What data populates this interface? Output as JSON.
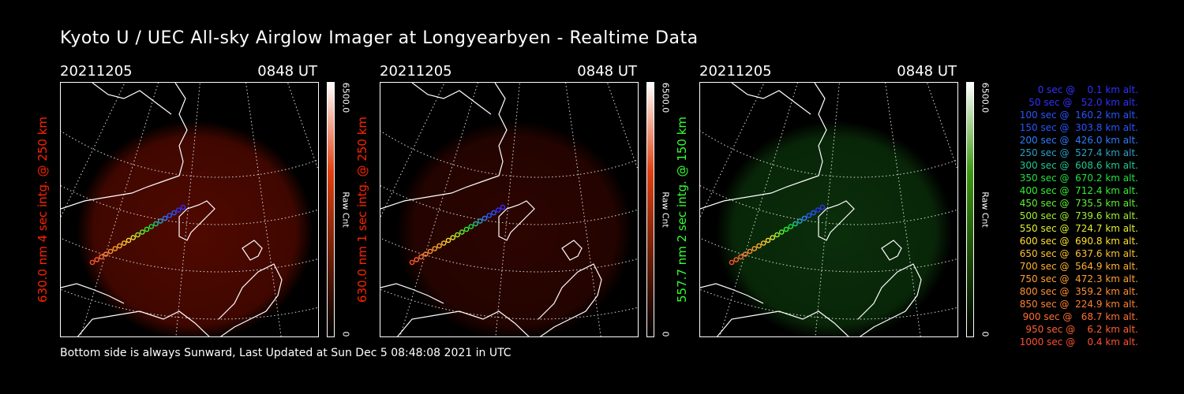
{
  "title": "Kyoto U / UEC All-sky Airglow Imager at Longyearbyen - Realtime Data",
  "footer": "Bottom side is always Sunward, Last Updated at Sun Dec  5 08:48:08 2021 in UTC",
  "colors": {
    "red_channel": "#ff2a00",
    "green_channel": "#33ff33",
    "frame": "#ffffff"
  },
  "chart_data": [
    {
      "type": "heatmap",
      "date": "20211205",
      "time": "0848 UT",
      "ylabel": "630.0 nm 4 sec intg. @ 250 km",
      "label_color": "#ff2200",
      "colorbar": {
        "max_label": "6500.0",
        "min_label": "0",
        "unit": "Raw Cnt",
        "top_color": "#ffffff",
        "mid_color": "#e04010",
        "bottom_color": "#000000"
      },
      "glow_color": "#6a0c00",
      "glow_opacity": 0.75,
      "track_panel": true
    },
    {
      "type": "heatmap",
      "date": "20211205",
      "time": "0848 UT",
      "ylabel": "630.0 nm 1 sec intg. @ 250 km",
      "label_color": "#ff2200",
      "colorbar": {
        "max_label": "6500.0",
        "min_label": "0",
        "unit": "Raw Cnt",
        "top_color": "#ffffff",
        "mid_color": "#e04010",
        "bottom_color": "#000000"
      },
      "glow_color": "#4a0800",
      "glow_opacity": 0.6,
      "track_panel": true
    },
    {
      "type": "heatmap",
      "date": "20211205",
      "time": "0848 UT",
      "ylabel": "557.7 nm 2 sec intg. @ 150 km",
      "label_color": "#33ff33",
      "colorbar": {
        "max_label": "6500.0",
        "min_label": "0",
        "unit": "Raw Cnt",
        "top_color": "#ffffff",
        "mid_color": "#3c9a10",
        "bottom_color": "#000000"
      },
      "glow_color": "#0d3a0d",
      "glow_opacity": 0.8,
      "track_panel": true
    }
  ],
  "legend": [
    {
      "text": "0 sec @    0.1 km alt.",
      "color": "#3030ff"
    },
    {
      "text": "50 sec @   52.0 km alt.",
      "color": "#3030ff"
    },
    {
      "text": "100 sec @  160.2 km alt.",
      "color": "#2a55ff"
    },
    {
      "text": "150 sec @  303.8 km alt.",
      "color": "#2a55ff"
    },
    {
      "text": "200 sec @  426.0 km alt.",
      "color": "#2f7cff"
    },
    {
      "text": "250 sec @  527.4 km alt.",
      "color": "#2aa0c8"
    },
    {
      "text": "300 sec @  608.6 km alt.",
      "color": "#20c890"
    },
    {
      "text": "350 sec @  670.2 km alt.",
      "color": "#20e040"
    },
    {
      "text": "400 sec @  712.4 km alt.",
      "color": "#30f030"
    },
    {
      "text": "450 sec @  735.5 km alt.",
      "color": "#60f030"
    },
    {
      "text": "500 sec @  739.6 km alt.",
      "color": "#a0f030"
    },
    {
      "text": "550 sec @  724.7 km alt.",
      "color": "#e0f030"
    },
    {
      "text": "600 sec @  690.8 km alt.",
      "color": "#ffe030"
    },
    {
      "text": "650 sec @  637.6 km alt.",
      "color": "#ffc030"
    },
    {
      "text": "700 sec @  564.9 km alt.",
      "color": "#ffb030"
    },
    {
      "text": "750 sec @  472.3 km alt.",
      "color": "#ffa030"
    },
    {
      "text": "800 sec @  359.2 km alt.",
      "color": "#ff9030"
    },
    {
      "text": "850 sec @  224.9 km alt.",
      "color": "#ff8030"
    },
    {
      "text": "900 sec @   68.7 km alt.",
      "color": "#ff7030"
    },
    {
      "text": "950 sec @    6.2 km alt.",
      "color": "#ff6030"
    },
    {
      "text": "1000 sec @    0.4 km alt.",
      "color": "#ff5030"
    }
  ]
}
